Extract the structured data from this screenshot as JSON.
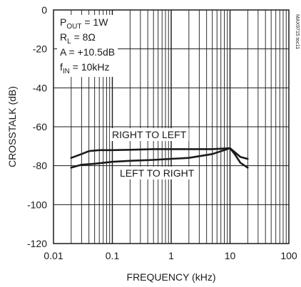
{
  "chart_data": {
    "type": "line",
    "title": "",
    "xlabel": "FREQUENCY (kHz)",
    "ylabel": "CROSSTALK (dB)",
    "xscale": "log",
    "xlim": [
      0.01,
      100
    ],
    "ylim": [
      -120,
      0
    ],
    "grid": true,
    "x_ticks": [
      "0.01",
      "0.1",
      "1",
      "10",
      "100"
    ],
    "y_ticks": [
      "0",
      "-20",
      "-40",
      "-60",
      "-80",
      "-100",
      "-120"
    ],
    "conditions": [
      {
        "main": "P",
        "sub": "OUT",
        "rest": " = 1W"
      },
      {
        "main": "R",
        "sub": "L",
        "rest": " = 8Ω"
      },
      {
        "main": "A = +10.5dB",
        "sub": "",
        "rest": ""
      },
      {
        "main": "f",
        "sub": "IN",
        "rest": " = 10kHz"
      }
    ],
    "figure_code": "MAX9715 toc11",
    "series": [
      {
        "name": "RIGHT TO LEFT",
        "x": [
          0.02,
          0.03,
          0.04,
          0.06,
          0.1,
          0.2,
          0.5,
          1,
          2,
          5,
          8,
          10,
          12,
          15,
          20
        ],
        "y": [
          -76,
          -74,
          -72.5,
          -72,
          -72,
          -71.8,
          -71.5,
          -71.5,
          -71.5,
          -71.5,
          -71.2,
          -71.0,
          -73,
          -75.5,
          -76.5
        ]
      },
      {
        "name": "LEFT TO RIGHT",
        "x": [
          0.02,
          0.03,
          0.05,
          0.1,
          0.2,
          0.5,
          1,
          2,
          5,
          8,
          10,
          12,
          15,
          20
        ],
        "y": [
          -81,
          -79.5,
          -79,
          -78,
          -77.5,
          -77,
          -76.5,
          -76,
          -74,
          -72,
          -71.0,
          -74,
          -78.5,
          -81
        ]
      }
    ]
  }
}
